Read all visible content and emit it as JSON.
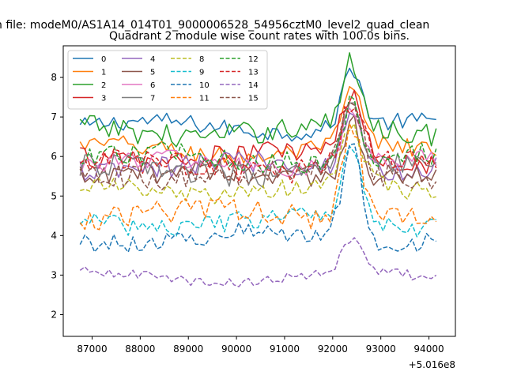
{
  "chart_data": {
    "type": "line",
    "suptitle": "n file: modeM0/AS1A14_014T01_9000006528_54956cztM0_level2_quad_clean",
    "title": "Quadrant 2 module wise count rates with 100.0s bins.",
    "xlabel": "",
    "ylabel": "",
    "x_offset_label": "+5.016e8",
    "x_range": [
      86750,
      94200
    ],
    "xlim": [
      86400,
      94550
    ],
    "ylim": [
      1.45,
      8.8
    ],
    "xticks": [
      87000,
      88000,
      89000,
      90000,
      91000,
      92000,
      93000,
      94000
    ],
    "xtick_labels": [
      "87000",
      "88000",
      "89000",
      "90000",
      "91000",
      "92000",
      "93000",
      "94000"
    ],
    "yticks": [
      2,
      3,
      4,
      5,
      6,
      7,
      8
    ],
    "ytick_labels": [
      "2",
      "3",
      "4",
      "5",
      "6",
      "7",
      "8"
    ],
    "legend_position": "upper-left",
    "legend_columns": 4,
    "bin_seconds": 100,
    "series": [
      {
        "name": "0",
        "color": "#1f77b4",
        "style": "solid",
        "base": 6.75,
        "noise": 0.22,
        "peak": 1.5,
        "end_drop": 2.5
      },
      {
        "name": "1",
        "color": "#ff7f0e",
        "style": "solid",
        "base": 6.15,
        "noise": 0.25,
        "peak": 1.4,
        "end_drop": 2.3
      },
      {
        "name": "2",
        "color": "#2ca02c",
        "style": "solid",
        "base": 6.65,
        "noise": 0.3,
        "peak": 1.6,
        "end_drop": 2.4
      },
      {
        "name": "3",
        "color": "#d62728",
        "style": "solid",
        "base": 6.0,
        "noise": 0.3,
        "peak": 1.6,
        "end_drop": 2.0
      },
      {
        "name": "4",
        "color": "#9467bd",
        "style": "solid",
        "base": 5.75,
        "noise": 0.3,
        "peak": 1.6,
        "end_drop": 1.8
      },
      {
        "name": "5",
        "color": "#8c564b",
        "style": "solid",
        "base": 5.55,
        "noise": 0.3,
        "peak": 1.5,
        "end_drop": 1.5
      },
      {
        "name": "6",
        "color": "#e377c2",
        "style": "solid",
        "base": 5.8,
        "noise": 0.25,
        "peak": 1.4,
        "end_drop": 1.5
      },
      {
        "name": "7",
        "color": "#7f7f7f",
        "style": "solid",
        "base": 5.65,
        "noise": 0.3,
        "peak": 1.4,
        "end_drop": 1.5
      },
      {
        "name": "8",
        "color": "#bcbd22",
        "style": "dashed",
        "base": 5.15,
        "noise": 0.25,
        "peak": 1.6,
        "end_drop": 1.2
      },
      {
        "name": "9",
        "color": "#17becf",
        "style": "dashed",
        "base": 4.35,
        "noise": 0.25,
        "peak": 2.0,
        "end_drop": 0.9
      },
      {
        "name": "10",
        "color": "#1f77b4",
        "style": "dashed",
        "base": 3.95,
        "noise": 0.25,
        "peak": 2.5,
        "end_drop": 1.0
      },
      {
        "name": "11",
        "color": "#ff7f0e",
        "style": "dashed",
        "base": 4.55,
        "noise": 0.3,
        "peak": 2.4,
        "end_drop": 1.2
      },
      {
        "name": "12",
        "color": "#2ca02c",
        "style": "dashed",
        "base": 5.95,
        "noise": 0.3,
        "peak": 1.5,
        "end_drop": 1.5
      },
      {
        "name": "13",
        "color": "#d62728",
        "style": "dashed",
        "base": 5.75,
        "noise": 0.3,
        "peak": 1.6,
        "end_drop": 1.5
      },
      {
        "name": "14",
        "color": "#9467bd",
        "style": "dashed",
        "base": 2.95,
        "noise": 0.12,
        "peak": 0.8,
        "end_drop": 1.2
      },
      {
        "name": "15",
        "color": "#8c564b",
        "style": "dashed",
        "base": 5.55,
        "noise": 0.3,
        "peak": 1.8,
        "end_drop": 1.4
      }
    ]
  }
}
